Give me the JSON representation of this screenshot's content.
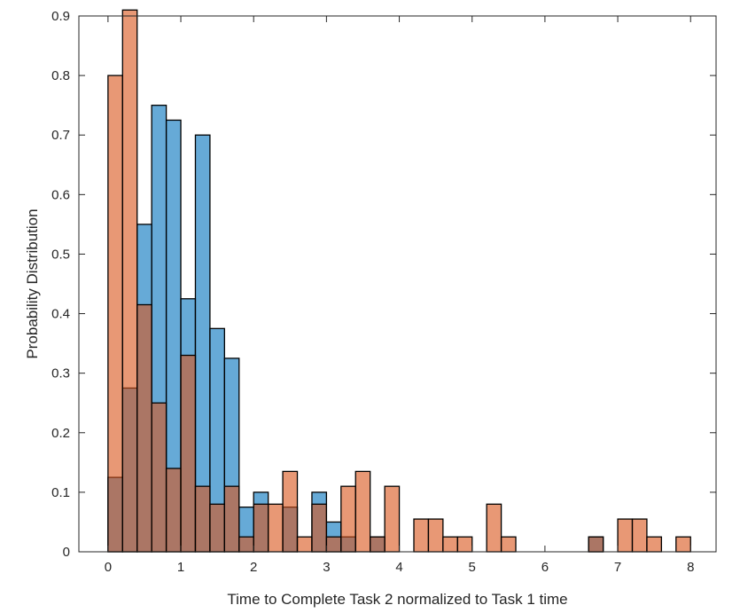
{
  "chart_data": {
    "type": "bar",
    "subtype": "overlapping-histogram",
    "xlabel": "Time to Complete Task 2 normalized to Task 1 time",
    "ylabel": "Probability Distribution",
    "xlim": [
      -0.4,
      8.35
    ],
    "ylim": [
      0,
      0.9
    ],
    "bin_width": 0.2,
    "xticks": [
      0,
      1,
      2,
      3,
      4,
      5,
      6,
      7,
      8
    ],
    "yticks": [
      0,
      0.1,
      0.2,
      0.3,
      0.4,
      0.5,
      0.6,
      0.7,
      0.8,
      0.9
    ],
    "xtick_labels": [
      "0",
      "1",
      "2",
      "3",
      "4",
      "5",
      "6",
      "7",
      "8"
    ],
    "ytick_labels": [
      "0",
      "0.1",
      "0.2",
      "0.3",
      "0.4",
      "0.5",
      "0.6",
      "0.7",
      "0.8",
      "0.9"
    ],
    "grid": false,
    "series": [
      {
        "color": "#0072BD",
        "bin_starts": [
          0.0,
          0.2,
          0.4,
          0.6,
          0.8,
          1.0,
          1.2,
          1.4,
          1.6,
          1.8,
          2.0,
          2.4,
          2.8,
          3.0,
          3.2,
          3.6,
          6.6
        ],
        "values": [
          0.125,
          0.275,
          0.55,
          0.75,
          0.725,
          0.425,
          0.7,
          0.375,
          0.325,
          0.075,
          0.1,
          0.075,
          0.1,
          0.05,
          0.025,
          0.025,
          0.025
        ]
      },
      {
        "color": "#D95319",
        "bin_starts": [
          0.0,
          0.2,
          0.4,
          0.6,
          0.8,
          1.0,
          1.2,
          1.4,
          1.6,
          1.8,
          2.0,
          2.2,
          2.4,
          2.6,
          2.8,
          3.0,
          3.2,
          3.4,
          3.6,
          3.8,
          4.2,
          4.4,
          4.6,
          4.8,
          5.2,
          5.4,
          6.6,
          7.0,
          7.2,
          7.4,
          7.8
        ],
        "values": [
          0.8,
          0.91,
          0.415,
          0.25,
          0.14,
          0.33,
          0.11,
          0.08,
          0.11,
          0.025,
          0.08,
          0.08,
          0.135,
          0.025,
          0.08,
          0.025,
          0.11,
          0.135,
          0.025,
          0.11,
          0.055,
          0.055,
          0.025,
          0.025,
          0.08,
          0.025,
          0.025,
          0.055,
          0.055,
          0.025,
          0.025
        ]
      }
    ]
  }
}
